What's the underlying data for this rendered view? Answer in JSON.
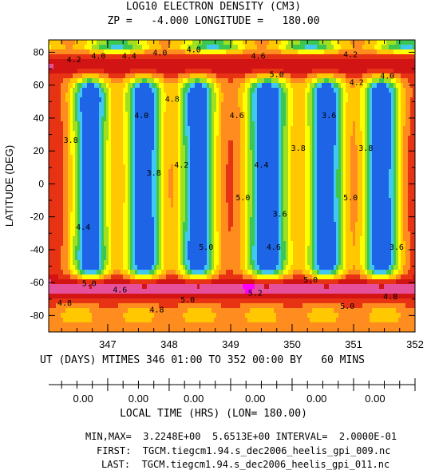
{
  "chart_data": {
    "type": "heatmap",
    "title": "LOG10 ELECTRON DENSITY (CM3)",
    "subtitle": "ZP =   -4.000 LONGITUDE =   180.00",
    "ylabel": "LATITUDE (DEG)",
    "xlabel": "UT (DAYS) MTIMES 346 01:00 TO 352 00:00 BY   60 MINS",
    "x_ticks": [
      "347",
      "348",
      "349",
      "350",
      "351",
      "352"
    ],
    "y_ticks": [
      "80",
      "60",
      "40",
      "20",
      "0",
      "-20",
      "-40",
      "-60",
      "-80"
    ],
    "xlim": [
      346.04,
      352.0
    ],
    "ylim": [
      -90,
      87.5
    ],
    "secondary_axis": {
      "label": "LOCAL TIME (HRS) (LON= 180.00)",
      "ticks": [
        "0.00",
        "0.00",
        "0.00",
        "0.00",
        "0.00",
        "0.00"
      ]
    },
    "levels": [
      3.2,
      3.4,
      3.6,
      3.8,
      4.0,
      4.2,
      4.4,
      4.6,
      4.8,
      5.0,
      5.2,
      5.4,
      5.6
    ],
    "colors": [
      "#1e64e6",
      "#1e64e6",
      "#1e64e6",
      "#40c8f0",
      "#3cc850",
      "#a0e020",
      "#ffff00",
      "#ffc800",
      "#ff8c1e",
      "#e83214",
      "#d21414",
      "#e6509b",
      "#ff00ff"
    ],
    "contour_labels": [
      "4.0",
      "4.2",
      "4.4",
      "4.6",
      "4.8",
      "5.0",
      "3.8",
      "3.6",
      "5.2"
    ],
    "stats": "MIN,MAX=  3.2248E+00  5.6513E+00 INTERVAL=  2.0000E-01",
    "first_file": "FIRST:  TGCM.tiegcm1.94.s_dec2006_heelis_gpi_009.nc",
    "last_file": "LAST:  TGCM.tiegcm1.94.s_dec2006_heelis_gpi_011.nc"
  }
}
